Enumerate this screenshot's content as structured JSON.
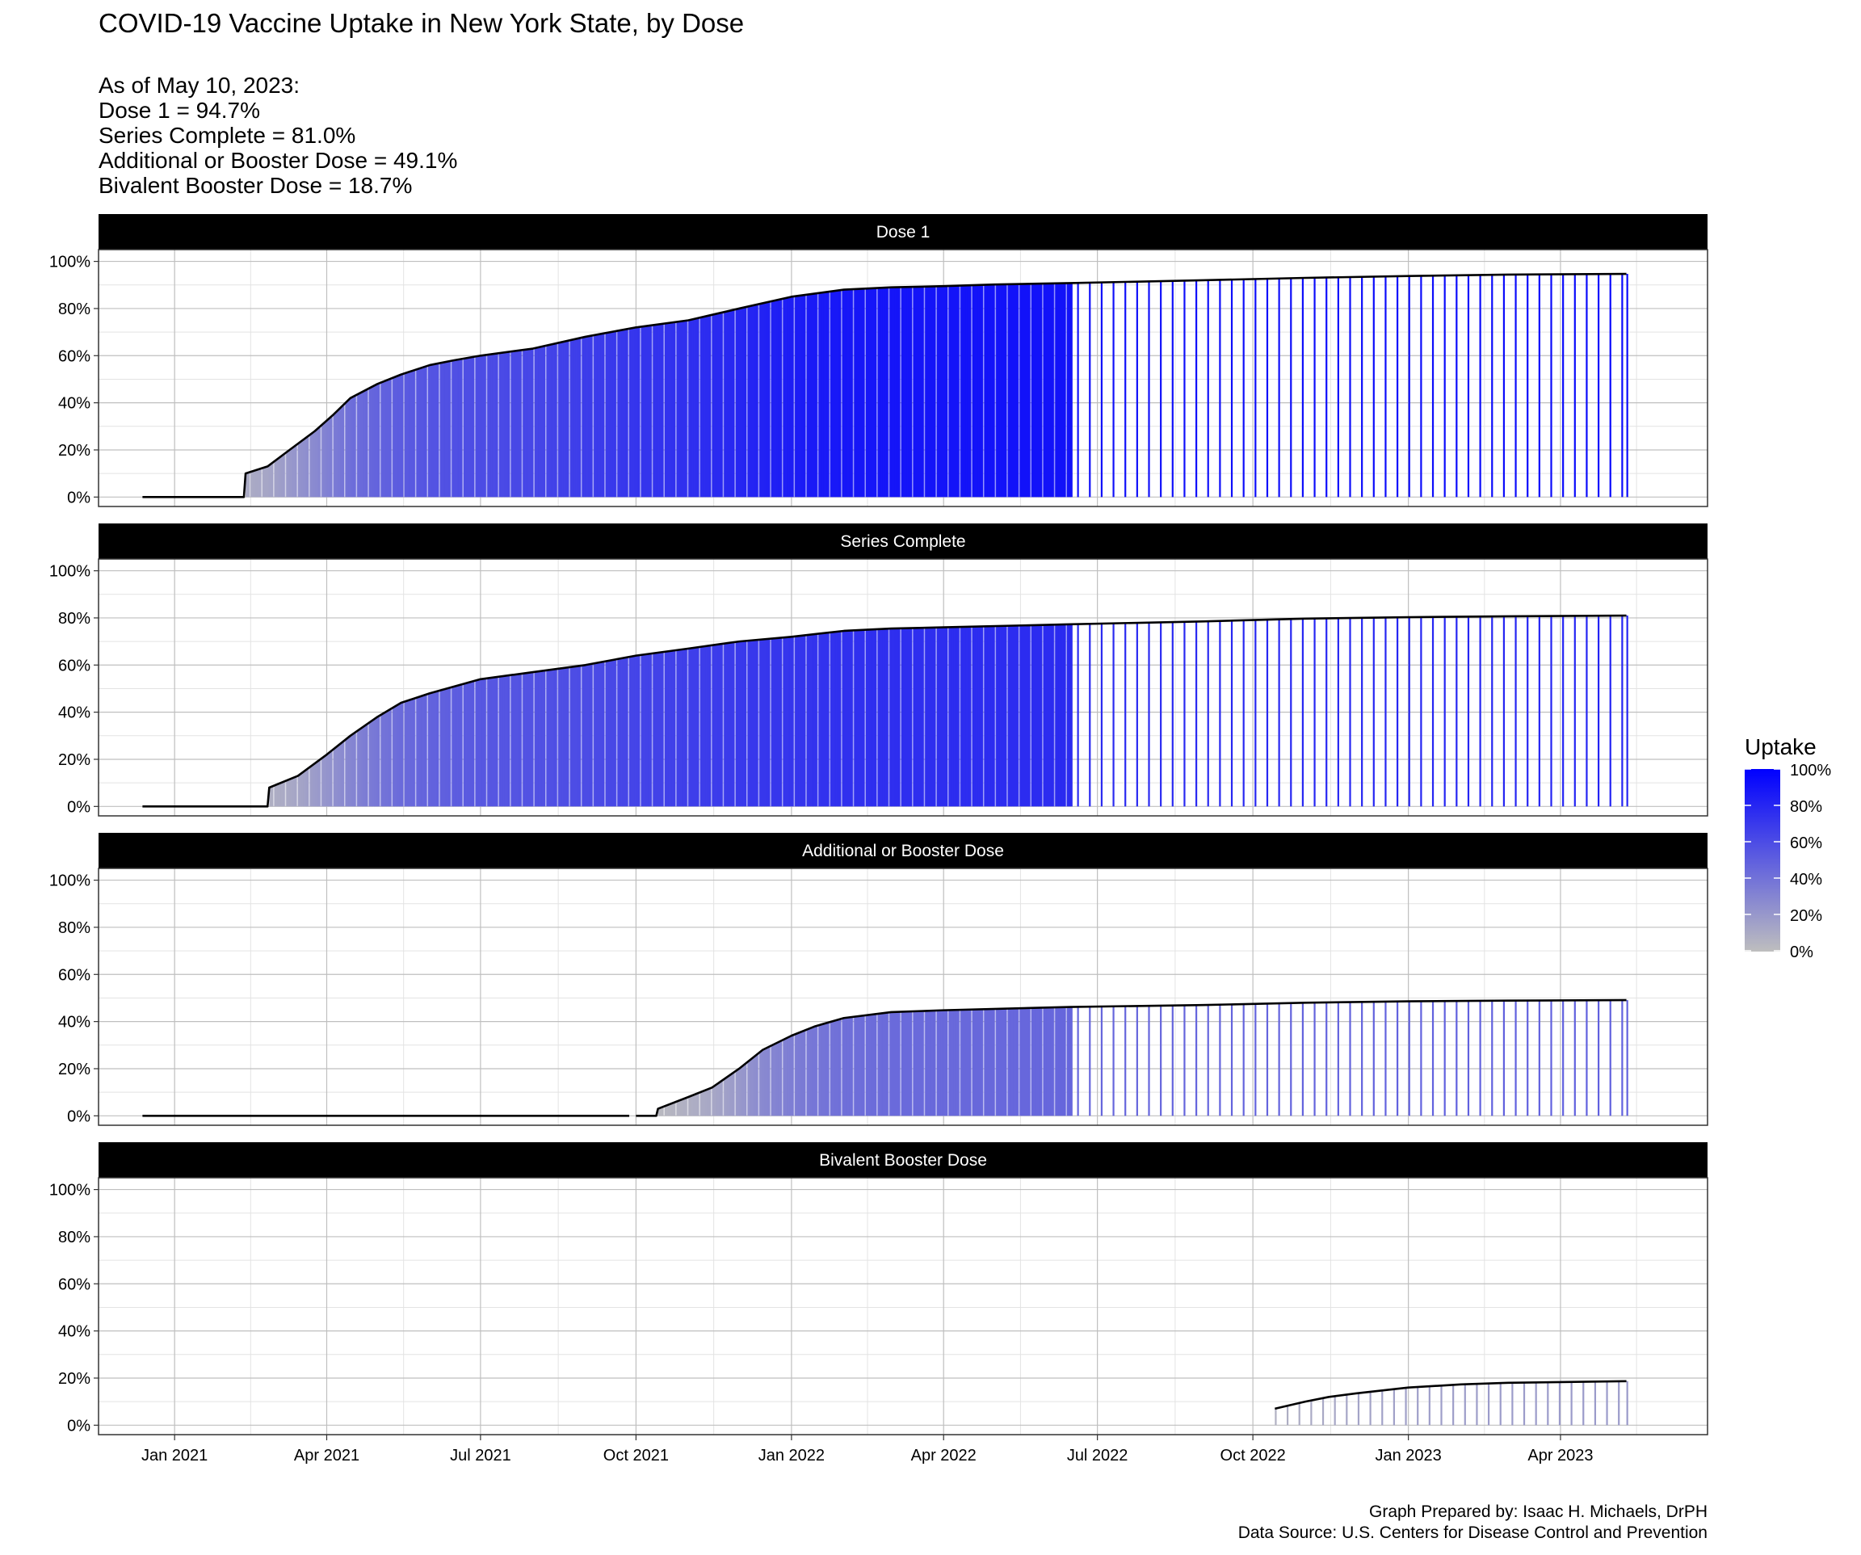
{
  "title": "COVID-19 Vaccine Uptake in New York State, by Dose",
  "subtitle_lines": [
    "As of May 10, 2023:",
    "Dose 1 = 94.7%",
    "Series Complete = 81.0%",
    "Additional or Booster Dose = 49.1%",
    "Bivalent Booster Dose = 18.7%"
  ],
  "caption_lines": [
    "Graph Prepared by: Isaac H. Michaels, DrPH",
    "Data Source: U.S. Centers for Disease Control and Prevention"
  ],
  "legend": {
    "title": "Uptake",
    "labels": [
      "100%",
      "80%",
      "60%",
      "40%",
      "20%",
      "0%"
    ],
    "color_low": "#BEBEBE",
    "color_high": "#0000FF"
  },
  "colors": {
    "strip_bg": "#000000",
    "strip_text": "#FFFFFF",
    "line": "#000000",
    "grid_major": "#BFBFBF",
    "grid_minor": "#E3E3E3",
    "panel_border": "#333333"
  },
  "chart_data": {
    "type": "area",
    "facet_by": "dose",
    "x_range": [
      "2020-11-17",
      "2023-06-27"
    ],
    "y_range": [
      -4,
      105
    ],
    "y_ticks": [
      0,
      20,
      40,
      60,
      80,
      100
    ],
    "y_tick_labels": [
      "0%",
      "20%",
      "40%",
      "60%",
      "80%",
      "100%"
    ],
    "x_ticks": [
      "2021-01-01",
      "2021-04-01",
      "2021-07-01",
      "2021-10-01",
      "2022-01-01",
      "2022-04-01",
      "2022-07-01",
      "2022-10-01",
      "2023-01-01",
      "2023-04-01"
    ],
    "x_tick_labels": [
      "Jan 2021",
      "Apr 2021",
      "Jul 2021",
      "Oct 2021",
      "Jan 2022",
      "Apr 2022",
      "Jul 2022",
      "Oct 2022",
      "Jan 2023",
      "Apr 2023"
    ],
    "ylabel": "",
    "xlabel": "",
    "grid": true,
    "legend_position": "right",
    "fill_daily_until": "2022-06-15",
    "bar_every_days": 7,
    "series": [
      {
        "name": "Dose 1",
        "points": [
          [
            "2020-12-13",
            0
          ],
          [
            "2021-02-11",
            0
          ],
          [
            "2021-02-12",
            10
          ],
          [
            "2021-02-25",
            13
          ],
          [
            "2021-03-10",
            20
          ],
          [
            "2021-03-25",
            28
          ],
          [
            "2021-04-05",
            35
          ],
          [
            "2021-04-15",
            42
          ],
          [
            "2021-05-01",
            48
          ],
          [
            "2021-05-15",
            52
          ],
          [
            "2021-06-01",
            56
          ],
          [
            "2021-06-15",
            58
          ],
          [
            "2021-07-01",
            60
          ],
          [
            "2021-08-01",
            63
          ],
          [
            "2021-09-01",
            68
          ],
          [
            "2021-10-01",
            72
          ],
          [
            "2021-11-01",
            75
          ],
          [
            "2021-12-01",
            80
          ],
          [
            "2022-01-01",
            85
          ],
          [
            "2022-02-01",
            88
          ],
          [
            "2022-03-01",
            89
          ],
          [
            "2022-04-01",
            89.5
          ],
          [
            "2022-05-01",
            90.2
          ],
          [
            "2022-06-15",
            90.8
          ],
          [
            "2022-09-01",
            92
          ],
          [
            "2022-11-01",
            93
          ],
          [
            "2023-01-01",
            93.8
          ],
          [
            "2023-03-01",
            94.4
          ],
          [
            "2023-05-10",
            94.7
          ]
        ]
      },
      {
        "name": "Series Complete",
        "points": [
          [
            "2020-12-13",
            0
          ],
          [
            "2021-02-25",
            0
          ],
          [
            "2021-02-26",
            8
          ],
          [
            "2021-03-15",
            13
          ],
          [
            "2021-04-01",
            22
          ],
          [
            "2021-04-15",
            30
          ],
          [
            "2021-05-01",
            38
          ],
          [
            "2021-05-15",
            44
          ],
          [
            "2021-06-01",
            48
          ],
          [
            "2021-07-01",
            54
          ],
          [
            "2021-08-01",
            57
          ],
          [
            "2021-09-01",
            60
          ],
          [
            "2021-10-01",
            64
          ],
          [
            "2021-11-01",
            67
          ],
          [
            "2021-12-01",
            70
          ],
          [
            "2022-01-01",
            72
          ],
          [
            "2022-02-01",
            74.5
          ],
          [
            "2022-03-01",
            75.5
          ],
          [
            "2022-04-01",
            76
          ],
          [
            "2022-06-15",
            77.3
          ],
          [
            "2022-09-01",
            78.5
          ],
          [
            "2022-11-01",
            79.7
          ],
          [
            "2023-01-01",
            80.3
          ],
          [
            "2023-03-01",
            80.7
          ],
          [
            "2023-05-10",
            81.0
          ]
        ]
      },
      {
        "name": "Additional or Booster Dose",
        "points": [
          [
            "2020-12-13",
            0
          ],
          [
            "2021-09-27",
            0
          ],
          null,
          [
            "2021-10-01",
            0
          ],
          [
            "2021-10-13",
            0
          ],
          [
            "2021-10-14",
            3
          ],
          [
            "2021-11-01",
            8
          ],
          [
            "2021-11-15",
            12
          ],
          [
            "2021-12-01",
            20
          ],
          [
            "2021-12-15",
            28
          ],
          [
            "2022-01-01",
            34
          ],
          [
            "2022-01-15",
            38
          ],
          [
            "2022-02-01",
            41.5
          ],
          [
            "2022-03-01",
            44
          ],
          [
            "2022-04-01",
            44.8
          ],
          [
            "2022-06-15",
            46.2
          ],
          [
            "2022-09-01",
            47
          ],
          [
            "2022-11-01",
            48
          ],
          [
            "2023-01-01",
            48.6
          ],
          [
            "2023-03-01",
            48.9
          ],
          [
            "2023-05-10",
            49.1
          ]
        ]
      },
      {
        "name": "Bivalent Booster Dose",
        "points": [
          [
            "2022-10-14",
            7
          ],
          [
            "2022-11-01",
            10
          ],
          [
            "2022-11-15",
            12
          ],
          [
            "2022-12-01",
            13.5
          ],
          [
            "2023-01-01",
            16
          ],
          [
            "2023-02-01",
            17.3
          ],
          [
            "2023-03-01",
            18
          ],
          [
            "2023-04-01",
            18.3
          ],
          [
            "2023-05-10",
            18.7
          ]
        ]
      }
    ]
  }
}
